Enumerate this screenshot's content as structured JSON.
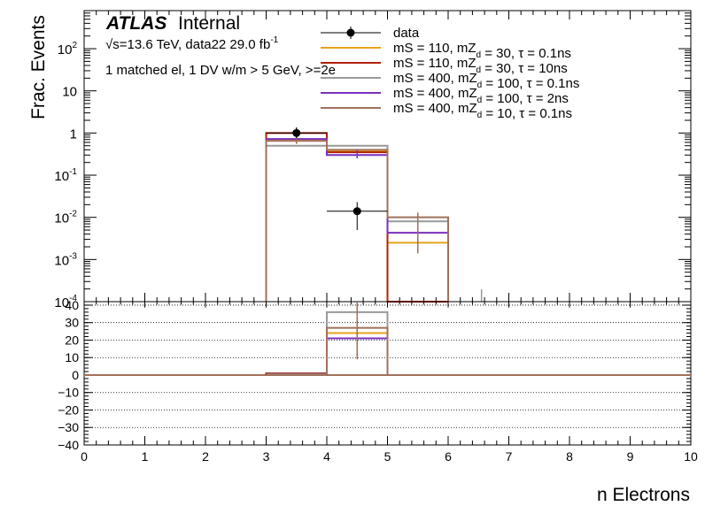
{
  "header": {
    "atlas": "ATLAS",
    "internal": "Internal",
    "energy_line": "√s=13.6 TeV, data22 29.0 fb",
    "energy_sup": "-1",
    "selection": "1 matched el, 1 DV w/m > 5 GeV, >=2e"
  },
  "axes": {
    "ylabel_top": "Frac. Events",
    "xlabel": "n Electrons",
    "x_ticks": [
      "0",
      "1",
      "2",
      "3",
      "4",
      "5",
      "6",
      "7",
      "8",
      "9",
      "10"
    ],
    "y_ticks_top": [
      {
        "base": "10",
        "exp": "-4",
        "v": -4
      },
      {
        "base": "10",
        "exp": "-3",
        "v": -3
      },
      {
        "base": "10",
        "exp": "-2",
        "v": -2
      },
      {
        "base": "10",
        "exp": "-1",
        "v": -1
      },
      {
        "base": "1",
        "exp": "",
        "v": 0
      },
      {
        "base": "10",
        "exp": "",
        "v": 1
      },
      {
        "base": "10",
        "exp": "2",
        "v": 2
      }
    ],
    "y_ticks_bottom": [
      "40",
      "30",
      "20",
      "10",
      "0",
      "−10",
      "−20",
      "−30",
      "−40"
    ]
  },
  "legend": [
    {
      "label": "data",
      "color": "#000000",
      "kind": "marker"
    },
    {
      "label": "mS = 110, mZ_d = 30, τ = 0.1ns",
      "color": "#e8a317",
      "kind": "line"
    },
    {
      "label": "mS = 110, mZ_d = 30, τ = 10ns",
      "color": "#b22000",
      "kind": "line"
    },
    {
      "label": "mS = 400, mZ_d = 100, τ = 0.1ns",
      "color": "#999999",
      "kind": "line"
    },
    {
      "label": "mS = 400, mZ_d = 100, τ = 2ns",
      "color": "#7b2fbe",
      "kind": "line"
    },
    {
      "label": "mS = 400, mZ_d = 10, τ = 0.1ns",
      "color": "#a0705a",
      "kind": "line"
    }
  ],
  "chart_data": {
    "type": "histogram",
    "x_range": [
      0,
      10
    ],
    "y_scale_top": "log",
    "ylim_top": [
      0.0001,
      800
    ],
    "ylim_bottom": [
      -40,
      42
    ],
    "bins": [
      3,
      4,
      5
    ],
    "bin_width": 1,
    "data": {
      "points": [
        {
          "x": 3.5,
          "y": 1.0,
          "err_lo": 0.75,
          "err_hi": 1.35
        },
        {
          "x": 4.5,
          "y": 0.014,
          "err_lo": 0.005,
          "err_hi": 0.023
        }
      ]
    },
    "series": [
      {
        "name": "mS = 110, mZ_d = 30, τ = 0.1ns",
        "color": "#e8a317",
        "values": [
          0.7,
          0.37,
          0.0025
        ],
        "ratio": [
          0.7,
          24,
          0
        ]
      },
      {
        "name": "mS = 110, mZ_d = 30, τ = 10ns",
        "color": "#b22000",
        "values": [
          1.0,
          0.35,
          0
        ],
        "ratio": [
          1.0,
          0,
          0
        ]
      },
      {
        "name": "mS = 400, mZ_d = 100, τ = 0.1ns",
        "color": "#999999",
        "values": [
          0.5,
          0.5,
          0.008
        ],
        "ratio": [
          0.5,
          36,
          0
        ]
      },
      {
        "name": "mS = 400, mZ_d = 100, τ = 2ns",
        "color": "#7b2fbe",
        "values": [
          0.72,
          0.3,
          0.0043
        ],
        "ratio": [
          0.72,
          21,
          0
        ]
      },
      {
        "name": "mS = 400, mZ_d = 10, τ = 0.1ns",
        "color": "#a0705a",
        "values": [
          0.65,
          0.4,
          0.01
        ],
        "ratio": [
          0.65,
          27,
          0
        ]
      }
    ],
    "ratio_errors": [
      {
        "x": 4.5,
        "y": 25,
        "lo": 9,
        "hi": 42,
        "color": "#a0705a"
      }
    ]
  }
}
